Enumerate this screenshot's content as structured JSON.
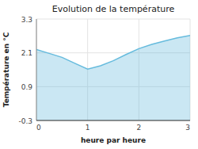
{
  "chart_data": {
    "type": "area",
    "title": "Evolution de la température",
    "x_label": "heure par heure",
    "y_label": "Température en °C",
    "x": [
      0,
      0.25,
      0.5,
      0.75,
      1.0,
      1.25,
      1.5,
      1.75,
      2.0,
      2.25,
      2.5,
      2.75,
      3.0
    ],
    "values": [
      2.22,
      2.08,
      1.94,
      1.73,
      1.52,
      1.64,
      1.82,
      2.04,
      2.25,
      2.4,
      2.52,
      2.63,
      2.72
    ],
    "color": "#66bbdd",
    "xlim": [
      0,
      3
    ],
    "ylim": [
      -0.3,
      3.3
    ],
    "xticks": [
      0,
      1,
      2,
      3
    ],
    "yticks": [
      -0.3,
      0.9,
      2.1,
      3.3
    ],
    "grid": true
  }
}
